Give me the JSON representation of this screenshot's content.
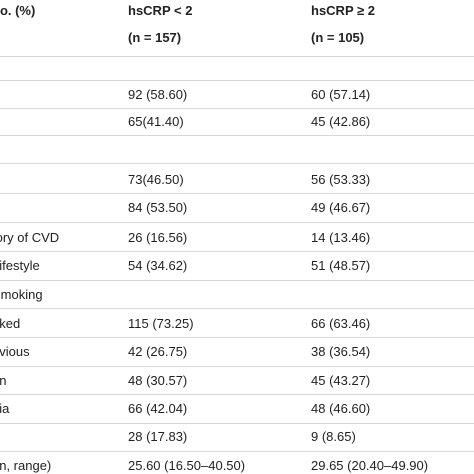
{
  "table": {
    "header": {
      "col0": "no. (%)",
      "col1": "hsCRP < 2",
      "col2": "hsCRP ≥ 2",
      "n1": "(n = 157)",
      "n2": "(n = 105)"
    },
    "rows": [
      {
        "label": "",
        "c1": "",
        "c2": ""
      },
      {
        "label": "",
        "c1": "92 (58.60)",
        "c2": "60 (57.14)"
      },
      {
        "label": "",
        "c1": "65(41.40)",
        "c2": "45 (42.86)"
      },
      {
        "label": "",
        "c1": "",
        "c2": ""
      },
      {
        "label": "",
        "c1": "73(46.50)",
        "c2": "56 (53.33)"
      },
      {
        "label": "",
        "c1": "84 (53.50)",
        "c2": "49 (46.67)"
      },
      {
        "label": "tory of CVD",
        "c1": "26 (16.56)",
        "c2": "14 (13.46)"
      },
      {
        "label": "Lifestyle",
        "c1": "54 (34.62)",
        "c2": "51 (48.57)"
      },
      {
        "label": "Smoking",
        "c1": "",
        "c2": ""
      },
      {
        "label": "oked",
        "c1": "115 (73.25)",
        "c2": "66 (63.46)"
      },
      {
        "label": "evious",
        "c1": "42 (26.75)",
        "c2": "38 (36.54)"
      },
      {
        "label": "on",
        "c1": "48 (30.57)",
        "c2": "45 (43.27)"
      },
      {
        "label": "nia",
        "c1": "66 (42.04)",
        "c2": "48 (46.60)"
      },
      {
        "label": "",
        "c1": "28 (17.83)",
        "c2": "9 (8.65)"
      },
      {
        "label": "an, range)",
        "c1": "25.60 (16.50–40.50)",
        "c2": "29.65 (20.40–49.90)"
      }
    ]
  },
  "colors": {
    "text": "#222222",
    "rule": "#d6d6d6",
    "background": "#ffffff"
  }
}
